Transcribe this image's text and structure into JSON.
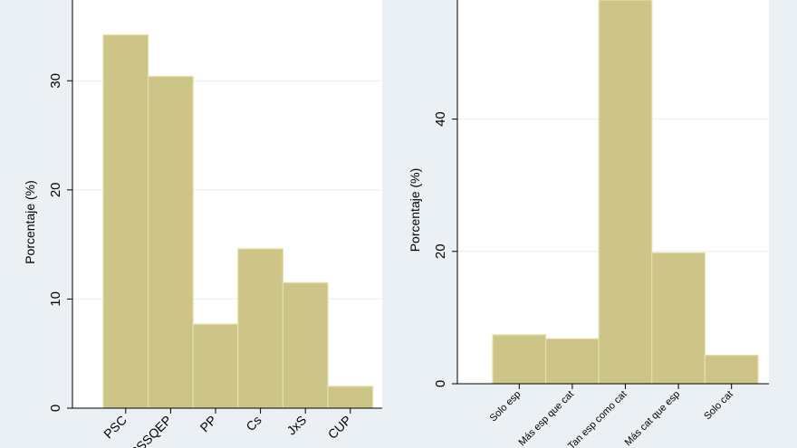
{
  "colors": {
    "bar_fill": "#cdc487",
    "bar_stroke": "#e6e0a8",
    "plot_bg": "#ffffff",
    "outer_bg": "#eaf0f3",
    "grid": "#e6eef2"
  },
  "chart_data": [
    {
      "type": "bar",
      "title": "",
      "xlabel": "",
      "ylabel": "Porcentaje (%)",
      "categories": [
        "PSC",
        "CSSQEP",
        "PP",
        "Cs",
        "JxS",
        "CUP"
      ],
      "values": [
        34.2,
        30.4,
        7.7,
        14.6,
        11.5,
        2.0
      ],
      "yticks": [
        0,
        10,
        20,
        30
      ],
      "ylim": [
        0,
        37.4
      ],
      "grid": true
    },
    {
      "type": "bar",
      "title": "",
      "xlabel": "",
      "ylabel": "Porcentaje (%)",
      "categories": [
        "Solo esp",
        "Más esp que cat",
        "Tan esp como cat",
        "Más cat que esp",
        "Solo cat"
      ],
      "values": [
        7.4,
        6.8,
        58.0,
        19.8,
        4.3
      ],
      "yticks": [
        0,
        20,
        40
      ],
      "ylim": [
        0,
        58.0
      ],
      "grid": true
    }
  ]
}
